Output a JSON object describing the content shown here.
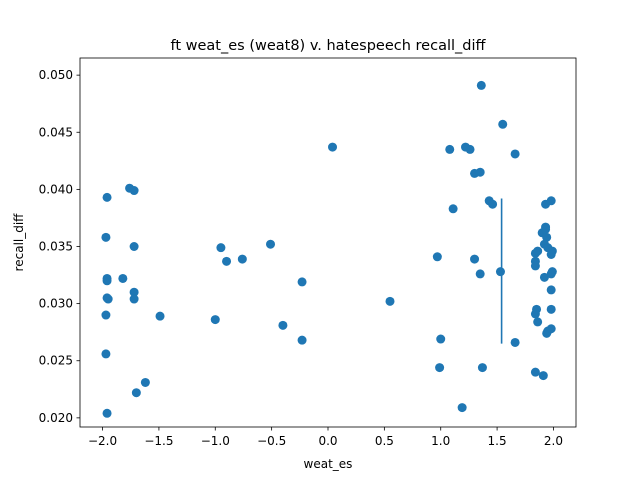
{
  "chart_data": {
    "type": "scatter",
    "title": "ft weat_es (weat8) v. hatespeech recall_diff",
    "xlabel": "weat_es",
    "ylabel": "recall_diff",
    "xlim": [
      -2.2,
      2.2
    ],
    "ylim": [
      0.0192,
      0.0515
    ],
    "xticks": [
      -2.0,
      -1.5,
      -1.0,
      -0.5,
      0.0,
      0.5,
      1.0,
      1.5,
      2.0
    ],
    "xtick_labels": [
      "−2.0",
      "−1.5",
      "−1.0",
      "−0.5",
      "0.0",
      "0.5",
      "1.0",
      "1.5",
      "2.0"
    ],
    "yticks": [
      0.02,
      0.025,
      0.03,
      0.035,
      0.04,
      0.045,
      0.05
    ],
    "ytick_labels": [
      "0.020",
      "0.025",
      "0.030",
      "0.035",
      "0.040",
      "0.045",
      "0.050"
    ],
    "grid": false,
    "marker_color": "#1f77b4",
    "points": [
      [
        -1.96,
        0.0393
      ],
      [
        -1.97,
        0.0358
      ],
      [
        -1.96,
        0.0322
      ],
      [
        -1.96,
        0.032
      ],
      [
        -1.96,
        0.0305
      ],
      [
        -1.95,
        0.0304
      ],
      [
        -1.97,
        0.029
      ],
      [
        -1.97,
        0.0256
      ],
      [
        -1.96,
        0.0204
      ],
      [
        -1.76,
        0.0401
      ],
      [
        -1.72,
        0.0399
      ],
      [
        -1.82,
        0.0322
      ],
      [
        -1.72,
        0.035
      ],
      [
        -1.72,
        0.031
      ],
      [
        -1.72,
        0.0304
      ],
      [
        -1.7,
        0.0222
      ],
      [
        -1.62,
        0.0231
      ],
      [
        -1.49,
        0.0289
      ],
      [
        -0.95,
        0.0349
      ],
      [
        -0.9,
        0.0337
      ],
      [
        -0.76,
        0.0339
      ],
      [
        -1.0,
        0.0286
      ],
      [
        -0.51,
        0.0352
      ],
      [
        -0.4,
        0.0281
      ],
      [
        -0.23,
        0.0319
      ],
      [
        -0.23,
        0.0268
      ],
      [
        0.04,
        0.0437
      ],
      [
        0.55,
        0.0302
      ],
      [
        0.97,
        0.0341
      ],
      [
        1.0,
        0.0269
      ],
      [
        0.99,
        0.0244
      ],
      [
        1.08,
        0.0435
      ],
      [
        1.11,
        0.0383
      ],
      [
        1.19,
        0.0209
      ],
      [
        1.22,
        0.0437
      ],
      [
        1.26,
        0.0435
      ],
      [
        1.3,
        0.0414
      ],
      [
        1.35,
        0.0415
      ],
      [
        1.36,
        0.0491
      ],
      [
        1.3,
        0.0339
      ],
      [
        1.35,
        0.0326
      ],
      [
        1.37,
        0.0244
      ],
      [
        1.43,
        0.039
      ],
      [
        1.46,
        0.0387
      ],
      [
        1.53,
        0.0328
      ],
      [
        1.55,
        0.0457
      ],
      [
        1.66,
        0.0431
      ],
      [
        1.66,
        0.0266
      ],
      [
        1.84,
        0.0337
      ],
      [
        1.84,
        0.0344
      ],
      [
        1.86,
        0.0346
      ],
      [
        1.84,
        0.0333
      ],
      [
        1.85,
        0.0295
      ],
      [
        1.84,
        0.0291
      ],
      [
        1.86,
        0.0284
      ],
      [
        1.84,
        0.024
      ],
      [
        1.9,
        0.0362
      ],
      [
        1.93,
        0.0387
      ],
      [
        1.93,
        0.0367
      ],
      [
        1.93,
        0.0365
      ],
      [
        1.94,
        0.0358
      ],
      [
        1.92,
        0.0352
      ],
      [
        1.95,
        0.0349
      ],
      [
        1.92,
        0.0323
      ],
      [
        1.94,
        0.0274
      ],
      [
        1.95,
        0.0276
      ],
      [
        1.91,
        0.0237
      ],
      [
        1.98,
        0.039
      ],
      [
        1.99,
        0.0346
      ],
      [
        1.98,
        0.0343
      ],
      [
        1.98,
        0.0326
      ],
      [
        1.99,
        0.0328
      ],
      [
        1.98,
        0.0312
      ],
      [
        1.98,
        0.0295
      ],
      [
        1.98,
        0.0278
      ]
    ],
    "vline": {
      "x": 1.54,
      "y_from": 0.0265,
      "y_to": 0.0392
    }
  }
}
